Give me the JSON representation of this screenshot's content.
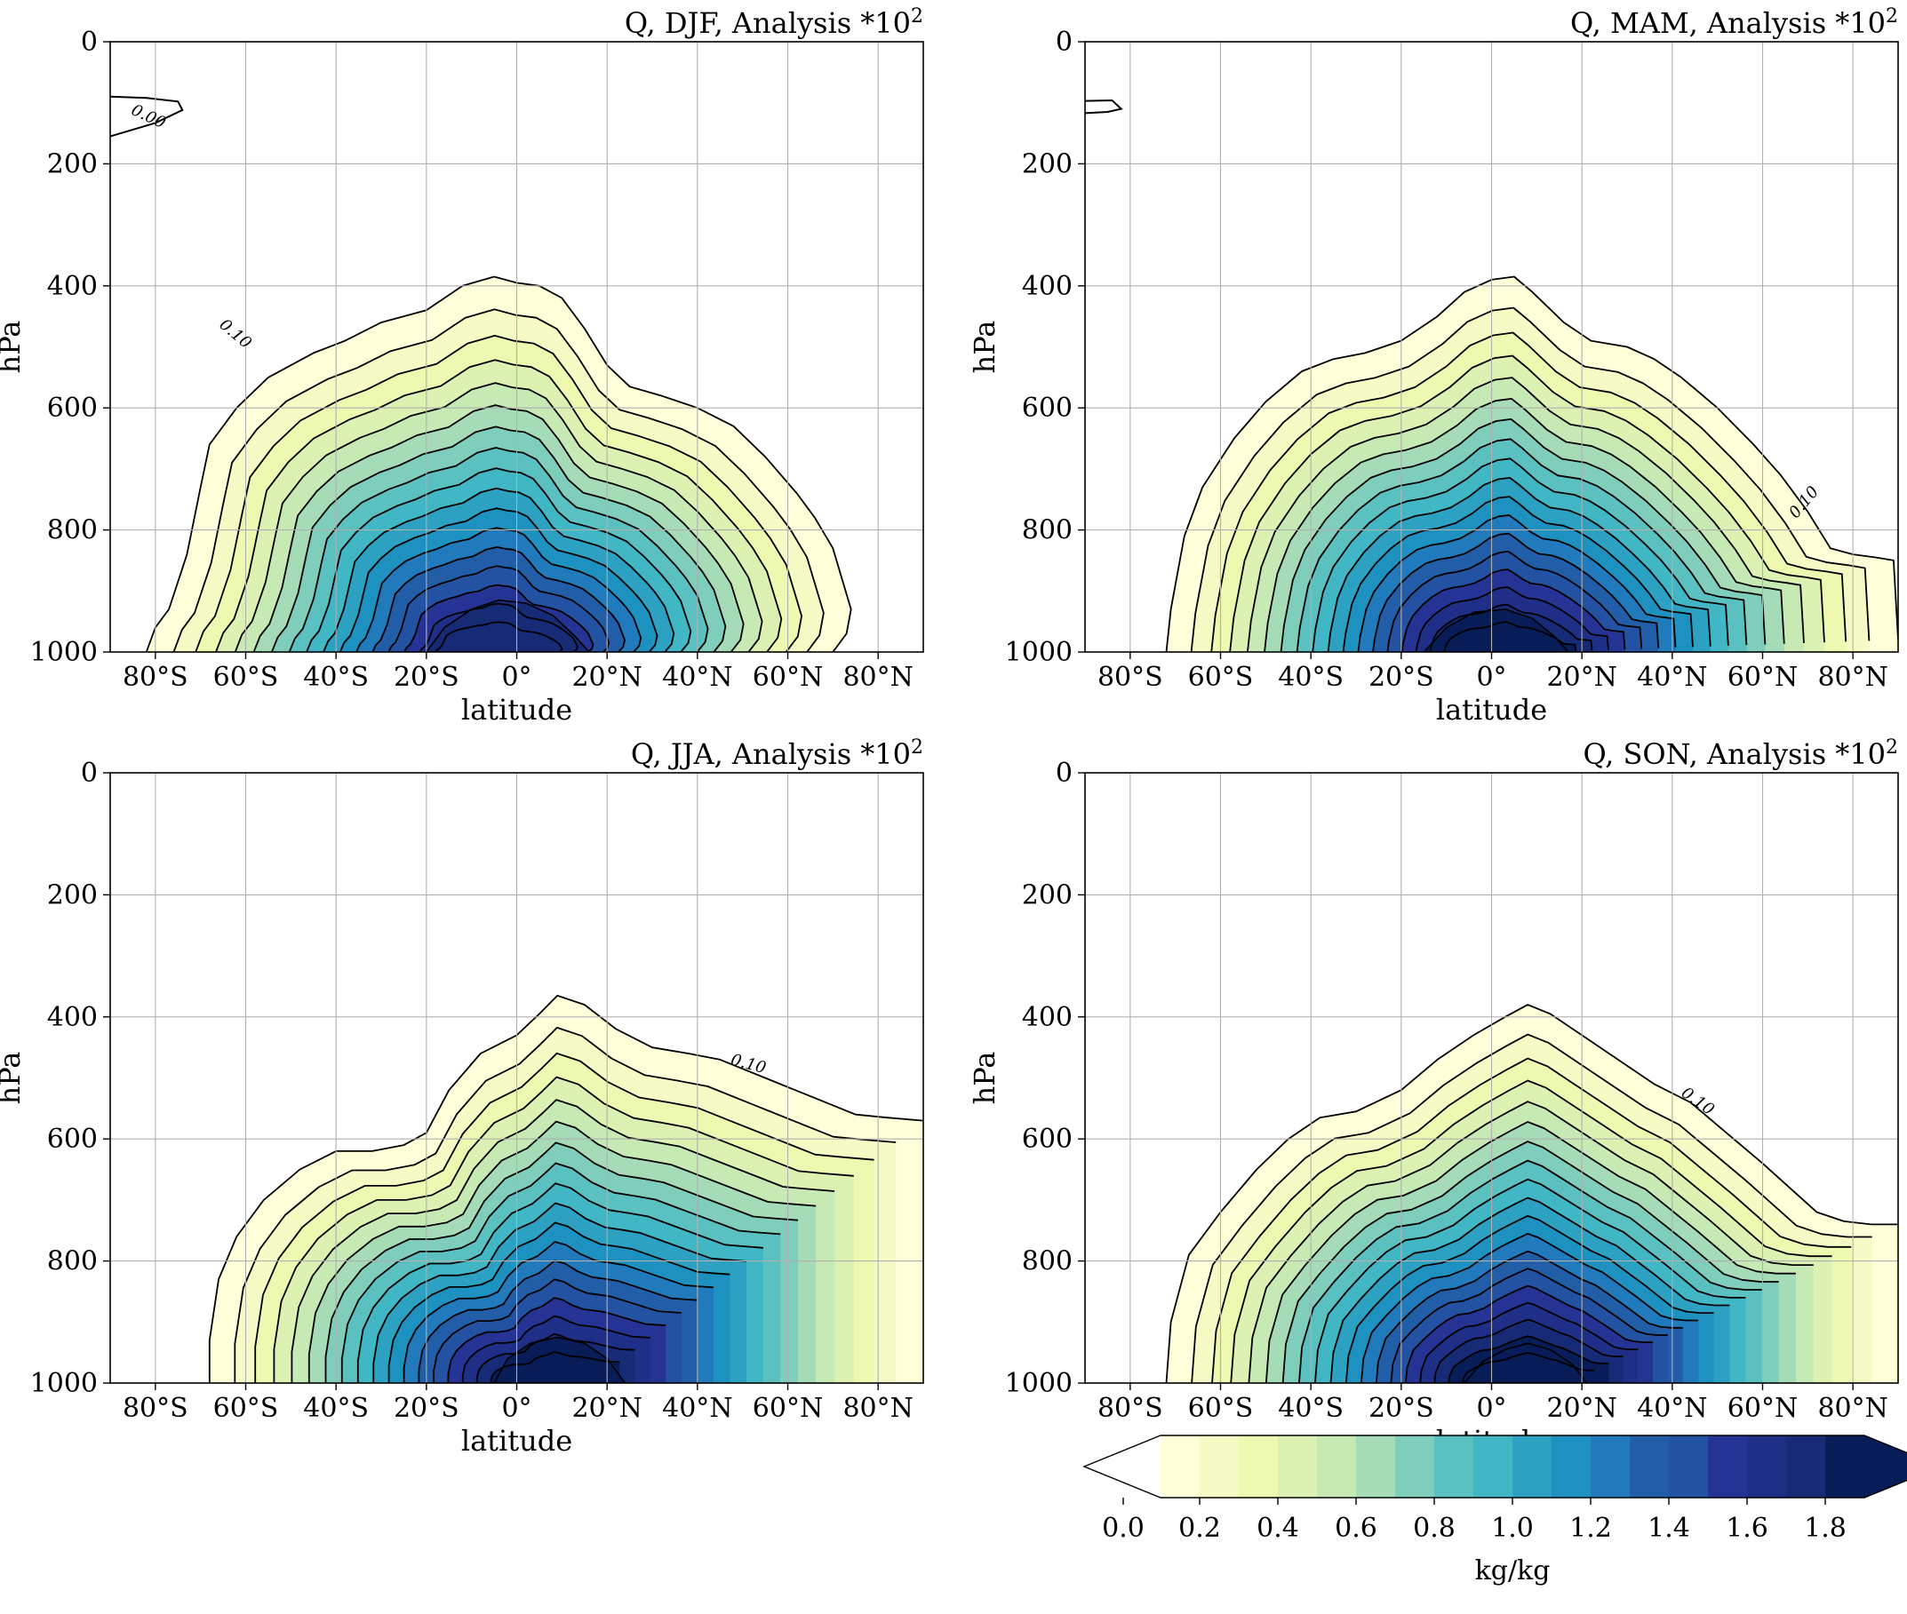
{
  "chart_data": [
    {
      "type": "contour",
      "title": "Q, DJF, Analysis *10",
      "title_exponent": "2",
      "xlabel": "latitude",
      "ylabel": "hPa",
      "xlim": [
        -90,
        90
      ],
      "ylim": [
        1000,
        0
      ],
      "xticks": [
        "80°S",
        "60°S",
        "40°S",
        "20°S",
        "0°",
        "20°N",
        "40°N",
        "60°N",
        "80°N"
      ],
      "yticks": [
        "0",
        "200",
        "400",
        "600",
        "800",
        "1000"
      ],
      "contour_labels": [
        {
          "text": "0.00",
          "lat": -82,
          "p": 130,
          "rotate": 25
        },
        {
          "text": "0.10",
          "lat": -63,
          "p": 485,
          "rotate": 40
        }
      ],
      "peak_lat": -4,
      "peak_value": 1.75,
      "outer_boundary": [
        [
          -82,
          1000
        ],
        [
          -80,
          960
        ],
        [
          -77,
          930
        ],
        [
          -73,
          840
        ],
        [
          -70,
          730
        ],
        [
          -68,
          660
        ],
        [
          -62,
          600
        ],
        [
          -55,
          550
        ],
        [
          -45,
          510
        ],
        [
          -38,
          490
        ],
        [
          -30,
          460
        ],
        [
          -20,
          440
        ],
        [
          -12,
          400
        ],
        [
          -5,
          385
        ],
        [
          0,
          395
        ],
        [
          5,
          400
        ],
        [
          10,
          420
        ],
        [
          15,
          470
        ],
        [
          20,
          530
        ],
        [
          25,
          565
        ],
        [
          32,
          580
        ],
        [
          40,
          600
        ],
        [
          48,
          630
        ],
        [
          55,
          680
        ],
        [
          62,
          740
        ],
        [
          66,
          780
        ],
        [
          70,
          830
        ],
        [
          72,
          880
        ],
        [
          74,
          930
        ],
        [
          73,
          970
        ],
        [
          70,
          1000
        ]
      ],
      "peak_boundary": [
        [
          -20,
          1000
        ],
        [
          -16,
          960
        ],
        [
          -10,
          930
        ],
        [
          -4,
          915
        ],
        [
          2,
          920
        ],
        [
          8,
          940
        ],
        [
          13,
          975
        ],
        [
          16,
          1000
        ]
      ],
      "upper_closed": [
        [
          -90,
          90
        ],
        [
          -82,
          92
        ],
        [
          -75,
          98
        ],
        [
          -74,
          112
        ],
        [
          -80,
          133
        ],
        [
          -90,
          155
        ]
      ]
    },
    {
      "type": "contour",
      "title": "Q, MAM, Analysis *10",
      "title_exponent": "2",
      "xlabel": "latitude",
      "ylabel": "hPa",
      "xlim": [
        -90,
        90
      ],
      "ylim": [
        1000,
        0
      ],
      "xticks": [
        "80°S",
        "60°S",
        "40°S",
        "20°S",
        "0°",
        "20°N",
        "40°N",
        "60°N",
        "80°N"
      ],
      "yticks": [
        "0",
        "200",
        "400",
        "600",
        "800",
        "1000"
      ],
      "contour_labels": [
        {
          "text": "0.10",
          "lat": 70,
          "p": 760,
          "rotate": -50
        }
      ],
      "peak_lat": 3,
      "peak_value": 1.8,
      "outer_boundary": [
        [
          -72,
          1000
        ],
        [
          -71,
          930
        ],
        [
          -68,
          810
        ],
        [
          -64,
          730
        ],
        [
          -57,
          650
        ],
        [
          -50,
          590
        ],
        [
          -42,
          540
        ],
        [
          -35,
          520
        ],
        [
          -28,
          510
        ],
        [
          -20,
          490
        ],
        [
          -12,
          450
        ],
        [
          -6,
          410
        ],
        [
          0,
          390
        ],
        [
          5,
          385
        ],
        [
          9,
          410
        ],
        [
          16,
          460
        ],
        [
          22,
          490
        ],
        [
          30,
          500
        ],
        [
          36,
          520
        ],
        [
          42,
          550
        ],
        [
          50,
          600
        ],
        [
          58,
          660
        ],
        [
          64,
          710
        ],
        [
          70,
          770
        ],
        [
          75,
          830
        ],
        [
          80,
          840
        ],
        [
          85,
          845
        ],
        [
          89,
          850
        ],
        [
          90,
          980
        ]
      ],
      "peak_boundary": [
        [
          -15,
          1000
        ],
        [
          -10,
          960
        ],
        [
          -4,
          935
        ],
        [
          3,
          930
        ],
        [
          9,
          945
        ],
        [
          14,
          975
        ],
        [
          17,
          1000
        ]
      ],
      "upper_closed": [
        [
          -90,
          97
        ],
        [
          -84,
          96
        ],
        [
          -82,
          110
        ],
        [
          -85,
          115
        ],
        [
          -90,
          117
        ]
      ]
    },
    {
      "type": "contour",
      "title": "Q, JJA, Analysis *10",
      "title_exponent": "2",
      "xlabel": "latitude",
      "ylabel": "hPa",
      "xlim": [
        -90,
        90
      ],
      "ylim": [
        1000,
        0
      ],
      "xticks": [
        "80°S",
        "60°S",
        "40°S",
        "20°S",
        "0°",
        "20°N",
        "40°N",
        "60°N",
        "80°N"
      ],
      "yticks": [
        "0",
        "200",
        "400",
        "600",
        "800",
        "1000"
      ],
      "contour_labels": [
        {
          "text": "0.10",
          "lat": 51,
          "p": 485,
          "rotate": 15
        }
      ],
      "peak_lat": 8,
      "peak_value": 1.8,
      "outer_boundary": [
        [
          -68,
          1000
        ],
        [
          -68,
          930
        ],
        [
          -66,
          830
        ],
        [
          -62,
          760
        ],
        [
          -56,
          700
        ],
        [
          -48,
          650
        ],
        [
          -40,
          620
        ],
        [
          -32,
          620
        ],
        [
          -25,
          610
        ],
        [
          -20,
          590
        ],
        [
          -15,
          520
        ],
        [
          -8,
          460
        ],
        [
          0,
          430
        ],
        [
          5,
          395
        ],
        [
          9,
          365
        ],
        [
          15,
          380
        ],
        [
          22,
          420
        ],
        [
          30,
          450
        ],
        [
          38,
          460
        ],
        [
          45,
          470
        ],
        [
          55,
          500
        ],
        [
          65,
          530
        ],
        [
          75,
          560
        ],
        [
          82,
          565
        ],
        [
          90,
          570
        ]
      ],
      "peak_boundary": [
        [
          -5,
          1000
        ],
        [
          -2,
          960
        ],
        [
          3,
          935
        ],
        [
          9,
          925
        ],
        [
          15,
          935
        ],
        [
          20,
          960
        ],
        [
          24,
          1000
        ]
      ],
      "upper_closed": []
    },
    {
      "type": "contour",
      "title": "Q, SON, Analysis *10",
      "title_exponent": "2",
      "xlabel": "latitude",
      "ylabel": "hPa",
      "xlim": [
        -90,
        90
      ],
      "ylim": [
        1000,
        0
      ],
      "xticks": [
        "80°S",
        "60°S",
        "40°S",
        "20°S",
        "0°",
        "20°N",
        "40°N",
        "60°N",
        "80°N"
      ],
      "yticks": [
        "0",
        "200",
        "400",
        "600",
        "800",
        "1000"
      ],
      "contour_labels": [
        {
          "text": "0.10",
          "lat": 45,
          "p": 545,
          "rotate": 35
        }
      ],
      "peak_lat": 8,
      "peak_value": 1.85,
      "outer_boundary": [
        [
          -72,
          1000
        ],
        [
          -71,
          900
        ],
        [
          -67,
          790
        ],
        [
          -60,
          720
        ],
        [
          -52,
          650
        ],
        [
          -45,
          600
        ],
        [
          -38,
          565
        ],
        [
          -30,
          555
        ],
        [
          -20,
          520
        ],
        [
          -12,
          470
        ],
        [
          -4,
          430
        ],
        [
          3,
          400
        ],
        [
          8,
          380
        ],
        [
          13,
          395
        ],
        [
          20,
          430
        ],
        [
          28,
          470
        ],
        [
          36,
          510
        ],
        [
          44,
          540
        ],
        [
          52,
          590
        ],
        [
          60,
          640
        ],
        [
          66,
          680
        ],
        [
          72,
          720
        ],
        [
          78,
          735
        ],
        [
          84,
          740
        ],
        [
          90,
          740
        ]
      ],
      "peak_boundary": [
        [
          -6,
          1000
        ],
        [
          -2,
          965
        ],
        [
          3,
          945
        ],
        [
          8,
          935
        ],
        [
          13,
          945
        ],
        [
          18,
          970
        ],
        [
          21,
          1000
        ]
      ],
      "upper_closed": []
    }
  ],
  "colorbar": {
    "label": "kg/kg",
    "ticks": [
      "0.0",
      "0.2",
      "0.4",
      "0.6",
      "0.8",
      "1.0",
      "1.2",
      "1.4",
      "1.6",
      "1.8"
    ],
    "tick_values": [
      0.0,
      0.2,
      0.4,
      0.6,
      0.8,
      1.0,
      1.2,
      1.4,
      1.6,
      1.8
    ],
    "levels_min": 0.1,
    "levels_max": 1.9,
    "levels_step": 0.1,
    "extend": "both",
    "colors": [
      "#ffffd9",
      "#f6fbc5",
      "#edf8b1",
      "#dcf1b2",
      "#c7e9b4",
      "#a5dcb7",
      "#7fcdbb",
      "#5ac0c0",
      "#41b6c4",
      "#2ca1c2",
      "#1d91c0",
      "#207abb",
      "#225ea8",
      "#2452a2",
      "#253494",
      "#1f2e86",
      "#162a75",
      "#081d58"
    ]
  }
}
